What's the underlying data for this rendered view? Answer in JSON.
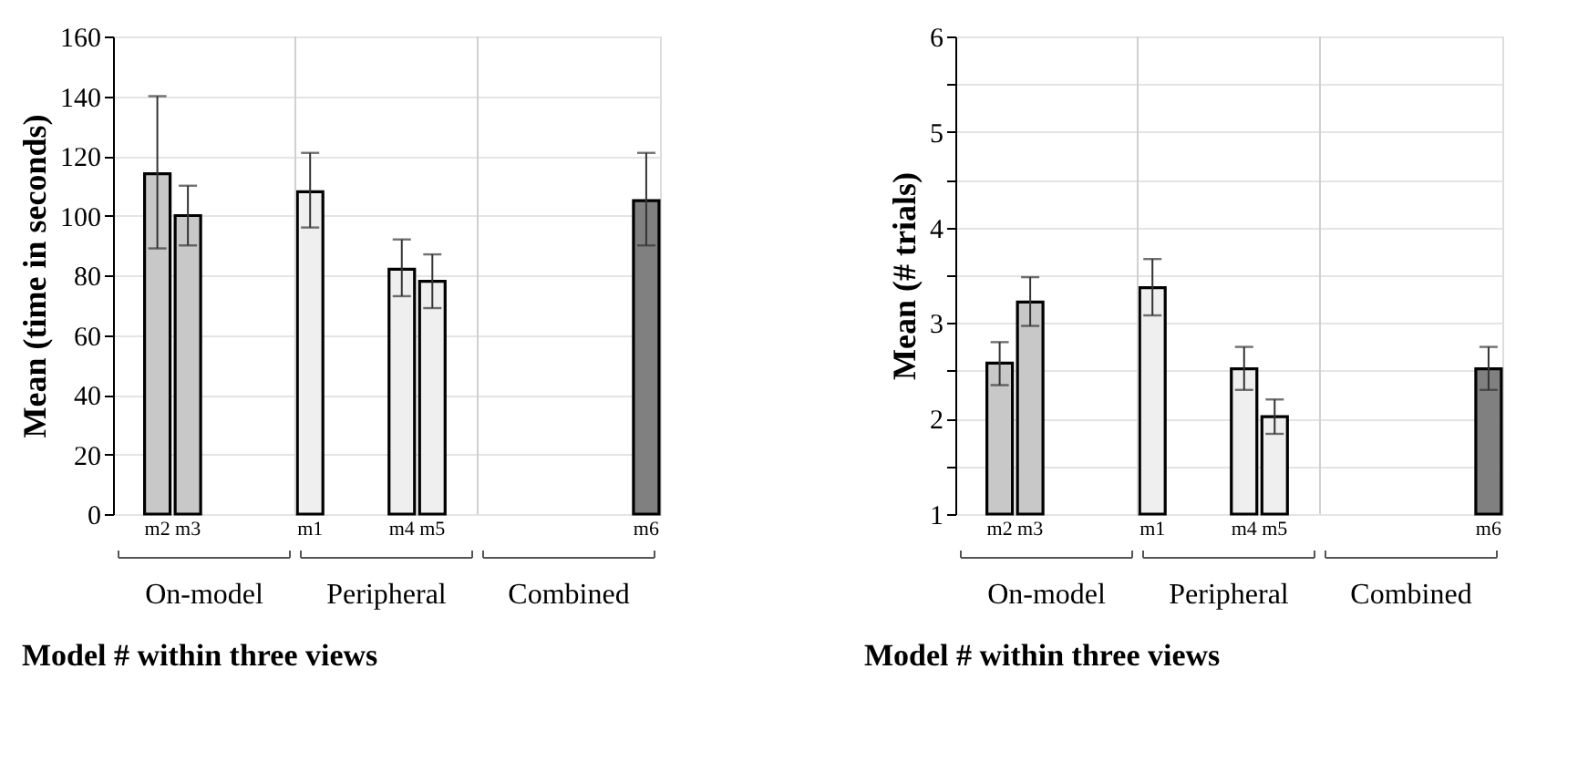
{
  "chart_data": [
    {
      "type": "bar",
      "ylabel": "Mean (time in seconds)",
      "xlabel": "Model # within three views",
      "categories": [
        null,
        "m2",
        "m3",
        null,
        null,
        null,
        "m1",
        null,
        null,
        "m4",
        "m5",
        null,
        null,
        null,
        null,
        null,
        null,
        "m6"
      ],
      "values": [
        null,
        114,
        100,
        null,
        null,
        null,
        108,
        null,
        null,
        82,
        78,
        null,
        null,
        null,
        null,
        null,
        null,
        105
      ],
      "errors": [
        null,
        [
          89,
          140
        ],
        [
          90,
          110
        ],
        null,
        null,
        null,
        [
          96,
          121
        ],
        null,
        null,
        [
          73,
          92
        ],
        [
          69,
          87
        ],
        null,
        null,
        null,
        null,
        null,
        null,
        [
          90,
          121
        ]
      ],
      "colors": [
        null,
        "#c8c8c8",
        "#c8c8c8",
        null,
        null,
        null,
        "#efefef",
        null,
        null,
        "#efefef",
        "#efefef",
        null,
        null,
        null,
        null,
        null,
        null,
        "#808080"
      ],
      "annotations": [
        "On-model",
        "Peripheral",
        "Combined"
      ],
      "ylim": [
        0,
        160
      ],
      "yticks": [
        0,
        20,
        40,
        60,
        80,
        100,
        120,
        140,
        160
      ],
      "grid": "y"
    },
    {
      "type": "bar",
      "ylabel": "Mean (# trials)",
      "xlabel": "Model # within three views",
      "categories": [
        null,
        "m2",
        "m3",
        null,
        null,
        null,
        "m1",
        null,
        null,
        "m4",
        "m5",
        null,
        null,
        null,
        null,
        null,
        null,
        "m6"
      ],
      "values": [
        null,
        2.58,
        3.22,
        null,
        null,
        null,
        3.37,
        null,
        null,
        2.52,
        2.02,
        null,
        null,
        null,
        null,
        null,
        null,
        2.52
      ],
      "errors": [
        null,
        [
          2.35,
          2.8
        ],
        [
          2.97,
          3.48
        ],
        null,
        null,
        null,
        [
          3.08,
          3.67
        ],
        null,
        null,
        [
          2.3,
          2.75
        ],
        [
          1.84,
          2.2
        ],
        null,
        null,
        null,
        null,
        null,
        null,
        [
          2.3,
          2.75
        ]
      ],
      "colors": [
        null,
        "#c8c8c8",
        "#c8c8c8",
        null,
        null,
        null,
        "#efefef",
        null,
        null,
        "#efefef",
        "#efefef",
        null,
        null,
        null,
        null,
        null,
        null,
        "#808080"
      ],
      "annotations": [
        "On-model",
        "Peripheral",
        "Combined"
      ],
      "ylim": [
        1,
        6
      ],
      "yticks": [
        1,
        {
          "value": 1.5,
          "label": null
        },
        2,
        {
          "value": 2.5,
          "label": null
        },
        3,
        {
          "value": 3.5,
          "label": null
        },
        4,
        {
          "value": 4.5,
          "label": null
        },
        5,
        {
          "value": 5.5,
          "label": null
        },
        6
      ],
      "grid": "y"
    }
  ]
}
